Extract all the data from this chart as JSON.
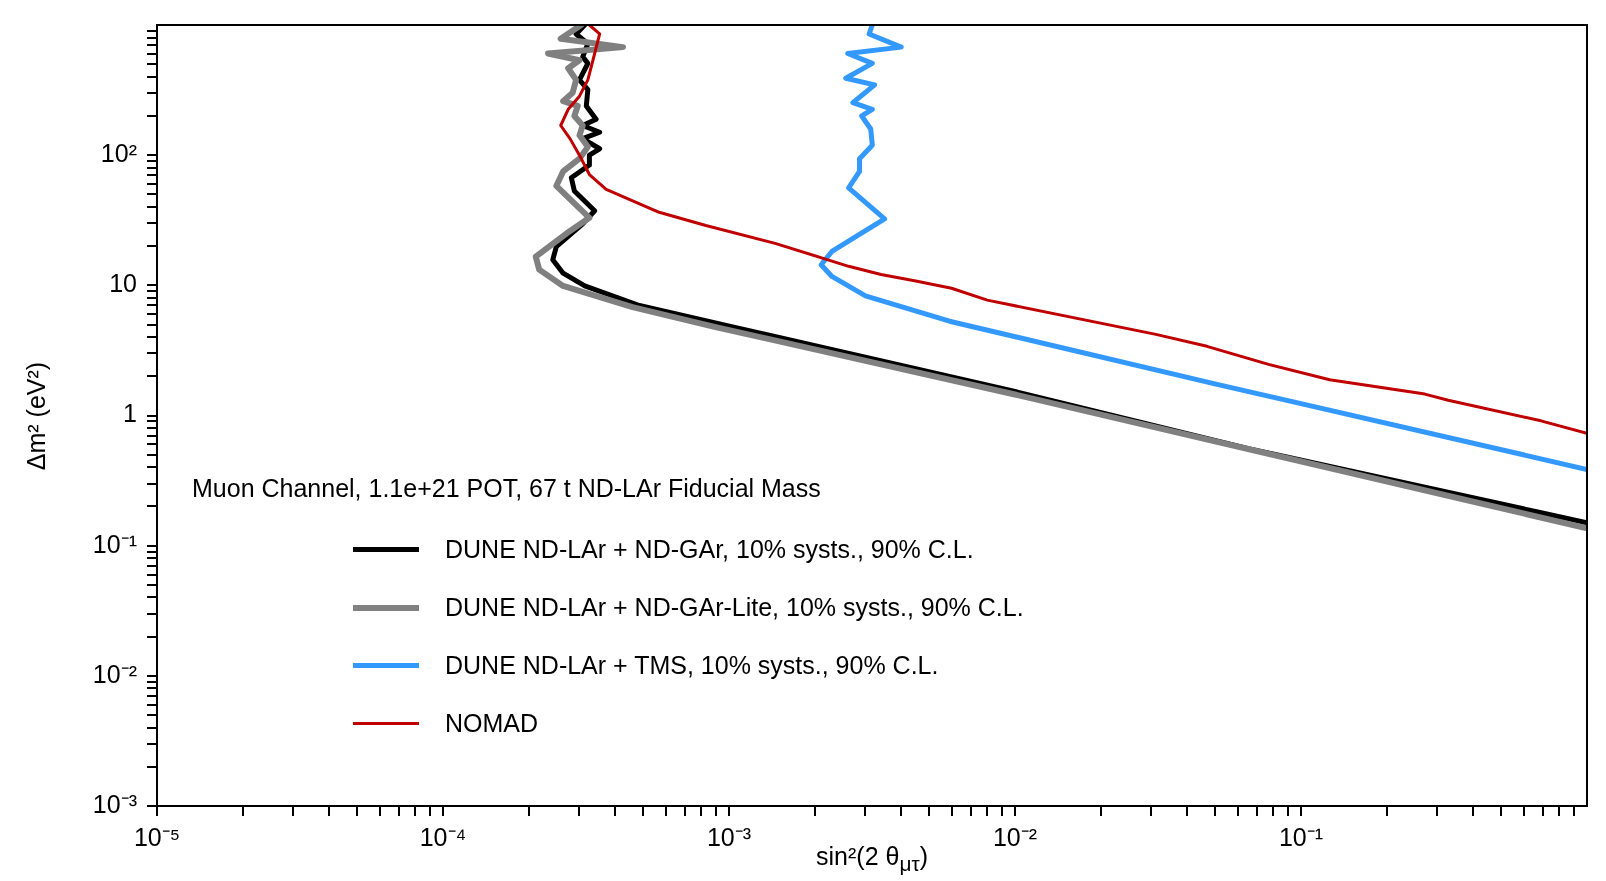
{
  "chart_data": {
    "type": "line",
    "xlabel": "sin²(2 θ$_{μτ}$)",
    "ylabel": "Δm² (eV²)",
    "log": "xy",
    "grid": false,
    "legend": "bottom left",
    "annotations": [
      "Muon Channel, 1.1e+21 POT, 67 t ND-LAr Fiducial Mass"
    ],
    "xlim": [
      1e-05,
      1
    ],
    "ylim": [
      0.001,
      1000
    ],
    "xticks": [
      {
        "value": 1e-05,
        "label": "10⁻⁵"
      },
      {
        "value": 2e-05,
        "label": null
      },
      {
        "value": 3e-05,
        "label": null
      },
      {
        "value": 4e-05,
        "label": null
      },
      {
        "value": 5e-05,
        "label": null
      },
      {
        "value": 6e-05,
        "label": null
      },
      {
        "value": 7e-05,
        "label": null
      },
      {
        "value": 8e-05,
        "label": null
      },
      {
        "value": 9e-05,
        "label": null
      },
      {
        "value": 0.0001,
        "label": "10⁻⁴"
      },
      {
        "value": 0.0002,
        "label": null
      },
      {
        "value": 0.0003,
        "label": null
      },
      {
        "value": 0.0004,
        "label": null
      },
      {
        "value": 0.0005,
        "label": null
      },
      {
        "value": 0.0006,
        "label": null
      },
      {
        "value": 0.0007,
        "label": null
      },
      {
        "value": 0.0008,
        "label": null
      },
      {
        "value": 0.0009,
        "label": null
      },
      {
        "value": 0.001,
        "label": "10⁻³"
      },
      {
        "value": 0.002,
        "label": null
      },
      {
        "value": 0.003,
        "label": null
      },
      {
        "value": 0.004,
        "label": null
      },
      {
        "value": 0.005,
        "label": null
      },
      {
        "value": 0.006,
        "label": null
      },
      {
        "value": 0.007,
        "label": null
      },
      {
        "value": 0.008,
        "label": null
      },
      {
        "value": 0.009,
        "label": null
      },
      {
        "value": 0.01,
        "label": "10⁻²"
      },
      {
        "value": 0.02,
        "label": null
      },
      {
        "value": 0.03,
        "label": null
      },
      {
        "value": 0.04,
        "label": null
      },
      {
        "value": 0.05,
        "label": null
      },
      {
        "value": 0.06,
        "label": null
      },
      {
        "value": 0.07,
        "label": null
      },
      {
        "value": 0.08,
        "label": null
      },
      {
        "value": 0.09,
        "label": null
      },
      {
        "value": 0.1,
        "label": "10⁻¹"
      },
      {
        "value": 0.2,
        "label": null
      },
      {
        "value": 0.3,
        "label": null
      },
      {
        "value": 0.4,
        "label": null
      },
      {
        "value": 0.5,
        "label": null
      },
      {
        "value": 0.6,
        "label": null
      },
      {
        "value": 0.7,
        "label": null
      },
      {
        "value": 0.8,
        "label": null
      },
      {
        "value": 0.9,
        "label": null
      }
    ],
    "yticks": [
      {
        "value": 0.001,
        "label": "10⁻³"
      },
      {
        "value": 0.002,
        "label": null
      },
      {
        "value": 0.003,
        "label": null
      },
      {
        "value": 0.004,
        "label": null
      },
      {
        "value": 0.005,
        "label": null
      },
      {
        "value": 0.006,
        "label": null
      },
      {
        "value": 0.007,
        "label": null
      },
      {
        "value": 0.008,
        "label": null
      },
      {
        "value": 0.009,
        "label": null
      },
      {
        "value": 0.01,
        "label": "10⁻²"
      },
      {
        "value": 0.02,
        "label": null
      },
      {
        "value": 0.03,
        "label": null
      },
      {
        "value": 0.04,
        "label": null
      },
      {
        "value": 0.05,
        "label": null
      },
      {
        "value": 0.06,
        "label": null
      },
      {
        "value": 0.07,
        "label": null
      },
      {
        "value": 0.08,
        "label": null
      },
      {
        "value": 0.09,
        "label": null
      },
      {
        "value": 0.1,
        "label": "10⁻¹"
      },
      {
        "value": 0.2,
        "label": null
      },
      {
        "value": 0.3,
        "label": null
      },
      {
        "value": 0.4,
        "label": null
      },
      {
        "value": 0.5,
        "label": null
      },
      {
        "value": 0.6,
        "label": null
      },
      {
        "value": 0.7,
        "label": null
      },
      {
        "value": 0.8,
        "label": null
      },
      {
        "value": 0.9,
        "label": null
      },
      1,
      {
        "value": 2,
        "label": null
      },
      {
        "value": 3,
        "label": null
      },
      {
        "value": 4,
        "label": null
      },
      {
        "value": 5,
        "label": null
      },
      {
        "value": 6,
        "label": null
      },
      {
        "value": 7,
        "label": null
      },
      {
        "value": 8,
        "label": null
      },
      {
        "value": 9,
        "label": null
      },
      10,
      {
        "value": 20,
        "label": null
      },
      {
        "value": 30,
        "label": null
      },
      {
        "value": 40,
        "label": null
      },
      {
        "value": 50,
        "label": null
      },
      {
        "value": 60,
        "label": null
      },
      {
        "value": 70,
        "label": null
      },
      {
        "value": 80,
        "label": null
      },
      {
        "value": 90,
        "label": null
      },
      {
        "value": 100,
        "label": "10²"
      },
      {
        "value": 200,
        "label": null
      },
      {
        "value": 300,
        "label": null
      },
      {
        "value": 400,
        "label": null
      },
      {
        "value": 500,
        "label": null
      },
      {
        "value": 600,
        "label": null
      },
      {
        "value": 700,
        "label": null
      },
      {
        "value": 800,
        "label": null
      },
      {
        "value": 900,
        "label": null
      }
    ],
    "series": [
      {
        "name": "DUNE ND-LAr + ND-GAr, 10% systs., 90% C.L.",
        "color": "#000000",
        "x": [
          0.000313,
          0.000292,
          0.000321,
          0.000308,
          0.000321,
          0.0003,
          0.000321,
          0.000317,
          0.000343,
          0.000308,
          0.000353,
          0.000308,
          0.000353,
          0.000325,
          0.000325,
          0.000281,
          0.000288,
          0.000339,
          0.000308,
          0.000249,
          0.000242,
          0.000263,
          0.000313,
          0.000486,
          0.00103,
          0.01,
          0.0655,
          1
        ],
        "values": [
          1000,
          853,
          718,
          569,
          507,
          379,
          319,
          239,
          189,
          169,
          150,
          134,
          112,
          100,
          84,
          67,
          53,
          37.4,
          29.7,
          19.8,
          15.7,
          12.4,
          9.9,
          7.0,
          4.8,
          1.53,
          0.557,
          0.15
        ]
      },
      {
        "name": "DUNE ND-LAr + ND-GAr-Lite, 10% systs., 90% C.L.",
        "color": "#808080",
        "x": [
          0.000304,
          0.000258,
          0.000426,
          0.000233,
          0.0003,
          0.000274,
          0.000292,
          0.000284,
          0.000263,
          0.000296,
          0.000288,
          0.000308,
          0.0003,
          0.000321,
          0.0003,
          0.000263,
          0.000249,
          0.000325,
          0.00027,
          0.000211,
          0.000217,
          0.000263,
          0.00046,
          0.00089,
          0.01,
          1
        ],
        "values": [
          1000,
          783,
          676,
          604,
          536,
          465,
          379,
          302,
          260,
          239,
          200,
          169,
          142,
          116,
          94,
          75,
          58,
          33,
          25,
          16.6,
          13.2,
          9.9,
          6.8,
          4.8,
          1.45,
          0.136
        ]
      },
      {
        "name": "DUNE ND-LAr + TMS, 10% systs., 90% C.L.",
        "color": "#3399ff",
        "x": [
          0.00317,
          0.00309,
          0.004,
          0.0026,
          0.00317,
          0.00256,
          0.00323,
          0.00271,
          0.00317,
          0.00291,
          0.00313,
          0.00317,
          0.00286,
          0.00286,
          0.00262,
          0.0035,
          0.00229,
          0.0021,
          0.00229,
          0.003,
          0.0059,
          0.05,
          1
        ],
        "values": [
          1000,
          853,
          676,
          604,
          507,
          390,
          347,
          253,
          225,
          200,
          159,
          119,
          94,
          75,
          56,
          32.4,
          18.2,
          14.4,
          11.7,
          8.3,
          5.3,
          1.75,
          0.385
        ]
      },
      {
        "name": "NOMAD",
        "color": "#c00000",
        "x": [
          0.000325,
          0.000353,
          0.000339,
          0.000321,
          0.0003,
          0.000274,
          0.000258,
          0.000278,
          0.0003,
          0.000325,
          0.000372,
          0.00057,
          0.00083,
          0.00145,
          0.00212,
          0.00262,
          0.0034,
          0.0045,
          0.006,
          0.008,
          0.0311,
          0.0469,
          0.077,
          0.126,
          0.271,
          0.327,
          0.69,
          1
        ],
        "values": [
          1000,
          853,
          604,
          379,
          284,
          225,
          169,
          134,
          100,
          71,
          54.6,
          36.4,
          28.8,
          21,
          16.2,
          14.0,
          12.1,
          10.8,
          9.5,
          7.7,
          4.2,
          3.4,
          2.47,
          1.88,
          1.46,
          1.31,
          0.91,
          0.73
        ]
      }
    ]
  }
}
